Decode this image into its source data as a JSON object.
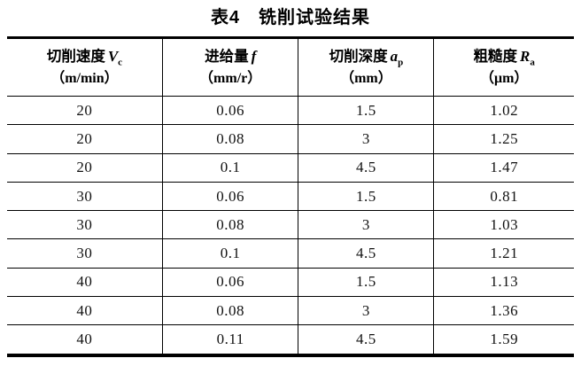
{
  "title": "表4　铣削试验结果",
  "table": {
    "columns": [
      {
        "label": "切削速度",
        "symbol": "V",
        "subscript": "c",
        "unit": "（m/min）"
      },
      {
        "label": "进给量",
        "symbol": "f",
        "subscript": "",
        "unit": "（mm/r）"
      },
      {
        "label": "切削深度",
        "symbol": "a",
        "subscript": "p",
        "unit": "（mm）"
      },
      {
        "label": "粗糙度",
        "symbol": "R",
        "subscript": "a",
        "unit": "（μm）"
      }
    ],
    "rows": [
      [
        "20",
        "0.06",
        "1.5",
        "1.02"
      ],
      [
        "20",
        "0.08",
        "3",
        "1.25"
      ],
      [
        "20",
        "0.1",
        "4.5",
        "1.47"
      ],
      [
        "30",
        "0.06",
        "1.5",
        "0.81"
      ],
      [
        "30",
        "0.08",
        "3",
        "1.03"
      ],
      [
        "30",
        "0.1",
        "4.5",
        "1.21"
      ],
      [
        "40",
        "0.06",
        "1.5",
        "1.13"
      ],
      [
        "40",
        "0.08",
        "3",
        "1.36"
      ],
      [
        "40",
        "0.11",
        "4.5",
        "1.59"
      ]
    ]
  },
  "chart_data": {
    "type": "table",
    "title": "表4　铣削试验结果",
    "columns": [
      "切削速度 Vc（m/min）",
      "进给量 f（mm/r）",
      "切削深度 ap（mm）",
      "粗糙度 Ra（μm）"
    ],
    "rows": [
      [
        20,
        0.06,
        1.5,
        1.02
      ],
      [
        20,
        0.08,
        3,
        1.25
      ],
      [
        20,
        0.1,
        4.5,
        1.47
      ],
      [
        30,
        0.06,
        1.5,
        0.81
      ],
      [
        30,
        0.08,
        3,
        1.03
      ],
      [
        30,
        0.1,
        4.5,
        1.21
      ],
      [
        40,
        0.06,
        1.5,
        1.13
      ],
      [
        40,
        0.08,
        3,
        1.36
      ],
      [
        40,
        0.11,
        4.5,
        1.59
      ]
    ]
  }
}
